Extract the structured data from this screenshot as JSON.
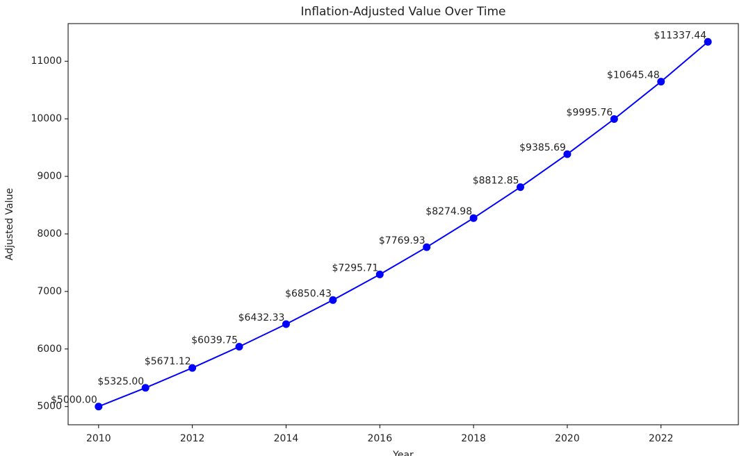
{
  "chart_data": {
    "type": "line",
    "title": "Inflation-Adjusted Value Over Time",
    "x_label": "Year",
    "y_label": "Adjusted Value",
    "x": [
      2010,
      2011,
      2012,
      2013,
      2014,
      2015,
      2016,
      2017,
      2018,
      2019,
      2020,
      2021,
      2022,
      2023
    ],
    "series": [
      {
        "name": "Adjusted Value",
        "color": "#0000ff",
        "values": [
          5000.0,
          5325.0,
          5671.12,
          6039.75,
          6432.33,
          6850.43,
          7295.71,
          7769.93,
          8274.98,
          8812.85,
          9385.69,
          9995.76,
          10645.48,
          11337.44
        ],
        "value_labels": [
          "$5000.00",
          "$5325.00",
          "$5671.12",
          "$6039.75",
          "$6432.33",
          "$6850.43",
          "$7295.71",
          "$7769.93",
          "$8274.98",
          "$8812.85",
          "$9385.69",
          "$9995.76",
          "$10645.48",
          "$11337.44"
        ]
      }
    ],
    "xlim": [
      2009.35,
      2023.65
    ],
    "xticks": [
      2010,
      2012,
      2014,
      2016,
      2018,
      2020,
      2022
    ],
    "ylim": [
      4683.1,
      11654.3
    ],
    "yticks": [
      5000,
      6000,
      7000,
      8000,
      9000,
      10000,
      11000
    ],
    "grid": false
  }
}
